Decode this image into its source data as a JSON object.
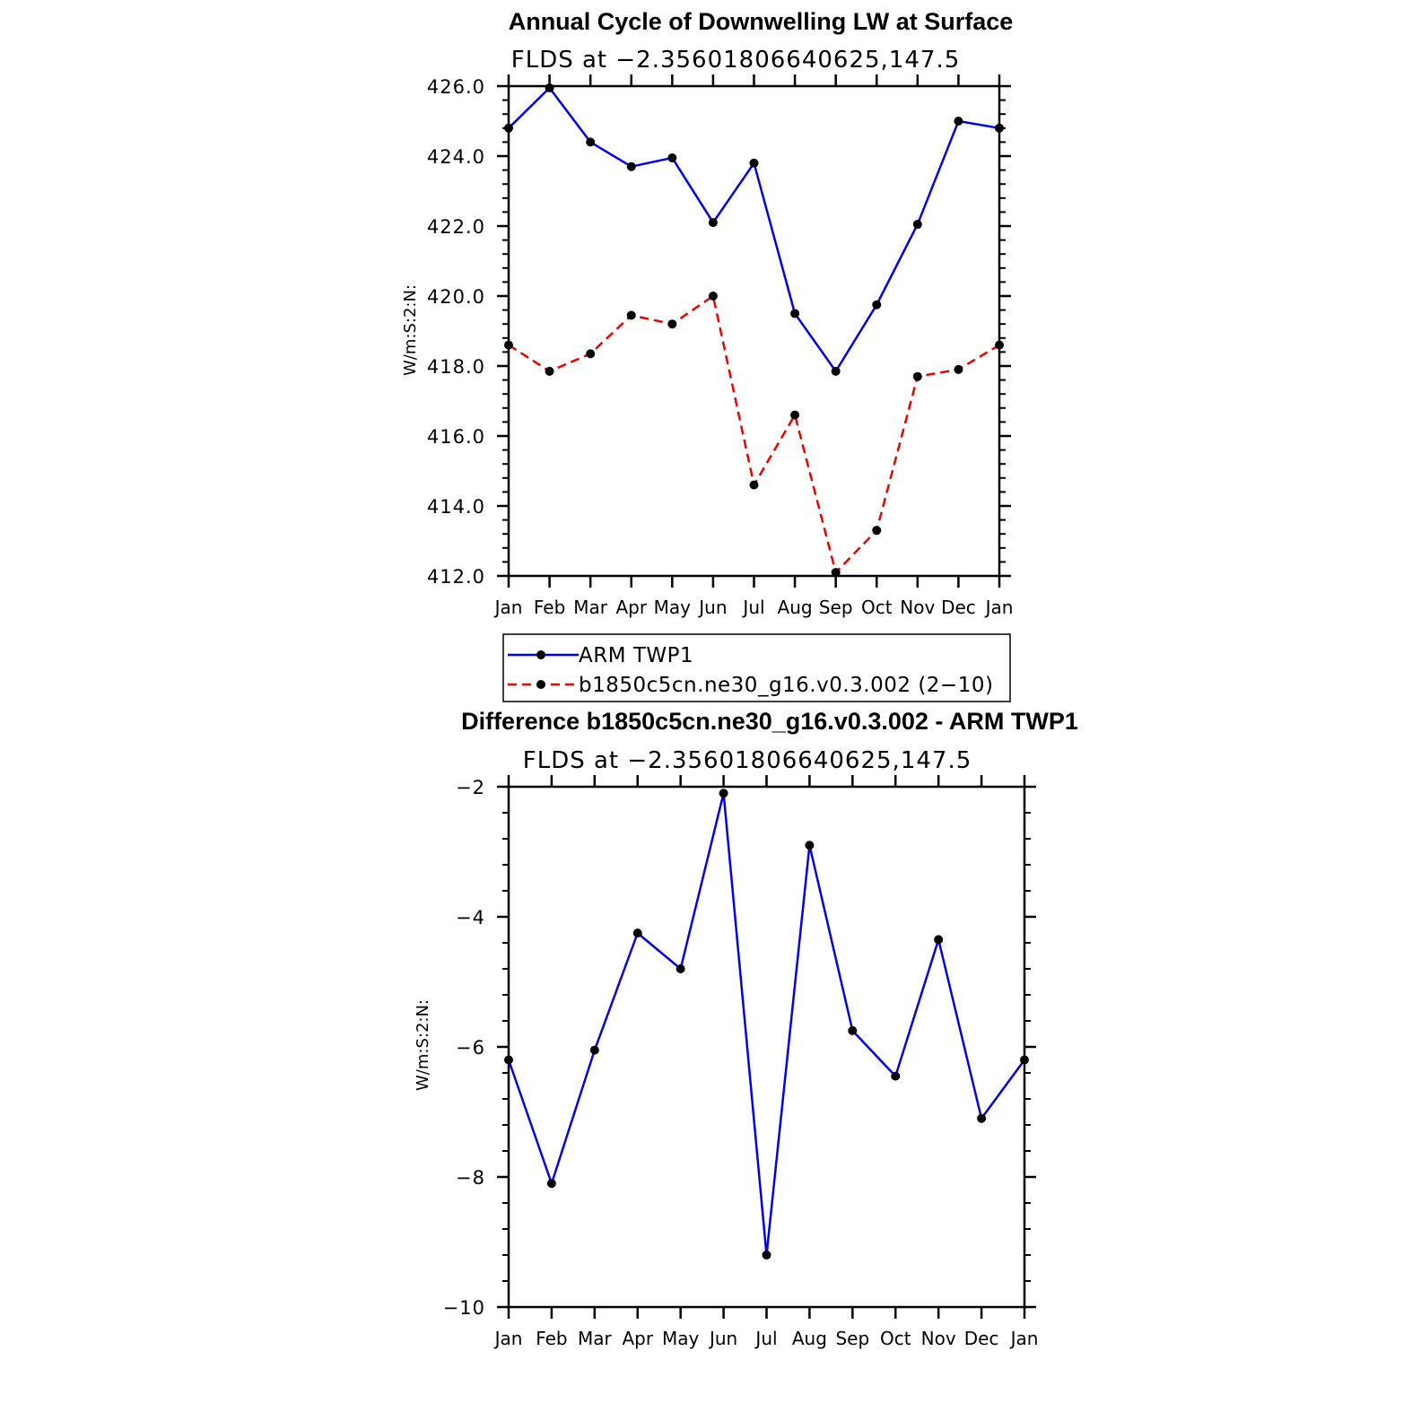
{
  "chart_data": [
    {
      "type": "line",
      "title": "Annual Cycle of Downwelling LW at Surface",
      "subtitle": "FLDS at −2.35601806640625,147.5",
      "ylabel": "W/m:S:2:N:",
      "xlabel": "",
      "categories": [
        "Jan",
        "Feb",
        "Mar",
        "Apr",
        "May",
        "Jun",
        "Jul",
        "Aug",
        "Sep",
        "Oct",
        "Nov",
        "Dec",
        "Jan"
      ],
      "ylim": [
        412.0,
        426.0
      ],
      "yticks": [
        "426.0",
        "424.0",
        "422.0",
        "420.0",
        "418.0",
        "416.0",
        "414.0",
        "412.0"
      ],
      "series": [
        {
          "name": "ARM TWP1",
          "color": "#0000ee",
          "dash": "solid",
          "values": [
            424.8,
            425.95,
            424.4,
            423.7,
            423.95,
            422.1,
            423.8,
            419.5,
            417.85,
            419.75,
            422.05,
            425.0,
            424.8
          ]
        },
        {
          "name": "b1850c5cn.ne30_g16.v0.3.002 (2−10)",
          "color": "#ee0000",
          "dash": "dashed",
          "values": [
            418.6,
            417.85,
            418.35,
            419.45,
            419.2,
            420.0,
            414.6,
            416.6,
            412.1,
            413.3,
            417.7,
            417.9,
            418.6
          ]
        }
      ],
      "legend_position": "below"
    },
    {
      "type": "line",
      "title": "Difference b1850c5cn.ne30_g16.v0.3.002 - ARM TWP1",
      "subtitle": "FLDS at −2.35601806640625,147.5",
      "ylabel": "W/m:S:2:N:",
      "xlabel": "",
      "categories": [
        "Jan",
        "Feb",
        "Mar",
        "Apr",
        "May",
        "Jun",
        "Jul",
        "Aug",
        "Sep",
        "Oct",
        "Nov",
        "Dec",
        "Jan"
      ],
      "ylim": [
        -10,
        -2
      ],
      "yticks": [
        "−2",
        "−4",
        "−6",
        "−8",
        "−10"
      ],
      "series": [
        {
          "color": "#0000ee",
          "dash": "solid",
          "values": [
            -6.2,
            -8.1,
            -6.05,
            -4.25,
            -4.8,
            -2.1,
            -9.2,
            -2.9,
            -5.75,
            -6.45,
            -4.35,
            -7.1,
            -6.2
          ]
        }
      ]
    }
  ]
}
